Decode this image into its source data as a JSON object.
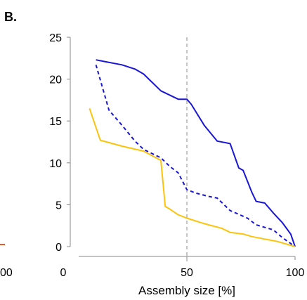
{
  "panel_label": "B.",
  "colors": {
    "series_blue": "#1a16d6",
    "series_yellow": "#fcc30d",
    "left_fragment": "#e8592a",
    "reference_line": "#888888",
    "axis": "#888888"
  },
  "left_fragment_tick": "00",
  "chart_data": {
    "type": "line",
    "title": "",
    "xlabel": "Assembly size [%]",
    "ylabel": "",
    "xlim": [
      0,
      100
    ],
    "ylim": [
      0,
      25
    ],
    "x_ticks": [
      0,
      50,
      100
    ],
    "x_tick_labels": [
      "0",
      "50",
      "100"
    ],
    "y_ticks": [
      0,
      5,
      10,
      15,
      20,
      25
    ],
    "y_tick_labels": [
      "0",
      "5",
      "10",
      "15",
      "20",
      "25"
    ],
    "grid": false,
    "legend": "none",
    "reference_lines": [
      {
        "orientation": "vertical",
        "x": 50,
        "style": "dashed"
      }
    ],
    "series": [
      {
        "style": "solid",
        "color": "#1a16d6",
        "x": [
          8,
          12,
          20,
          26,
          30,
          38,
          46,
          50,
          52,
          58,
          64,
          70,
          74,
          76,
          80,
          82,
          86,
          90,
          94,
          98,
          100
        ],
        "y": [
          22.3,
          22.1,
          21.7,
          21.2,
          20.6,
          18.6,
          17.6,
          17.6,
          17.0,
          14.5,
          12.6,
          12.3,
          9.4,
          9.1,
          6.5,
          5.4,
          5.2,
          4.0,
          2.9,
          1.5,
          0
        ]
      },
      {
        "style": "dashed",
        "color": "#1a16d6",
        "x": [
          8,
          14,
          20,
          26,
          30,
          38,
          42,
          46,
          50,
          54,
          60,
          64,
          70,
          78,
          82,
          90,
          94,
          100
        ],
        "y": [
          21.7,
          16.3,
          14.5,
          12.6,
          11.6,
          10.6,
          9.6,
          8.8,
          6.8,
          6.4,
          6.0,
          5.8,
          4.3,
          3.4,
          2.6,
          2.0,
          1.1,
          0
        ]
      },
      {
        "style": "solid",
        "color": "#fcc30d",
        "x": [
          5,
          10,
          20,
          30,
          38,
          40,
          42,
          46,
          50,
          56,
          60,
          66,
          70,
          76,
          80,
          86,
          92,
          100
        ],
        "y": [
          16.5,
          12.7,
          12.0,
          11.4,
          10.3,
          4.8,
          4.5,
          3.8,
          3.4,
          2.9,
          2.6,
          2.2,
          1.7,
          1.5,
          1.2,
          0.9,
          0.6,
          0
        ]
      }
    ]
  }
}
